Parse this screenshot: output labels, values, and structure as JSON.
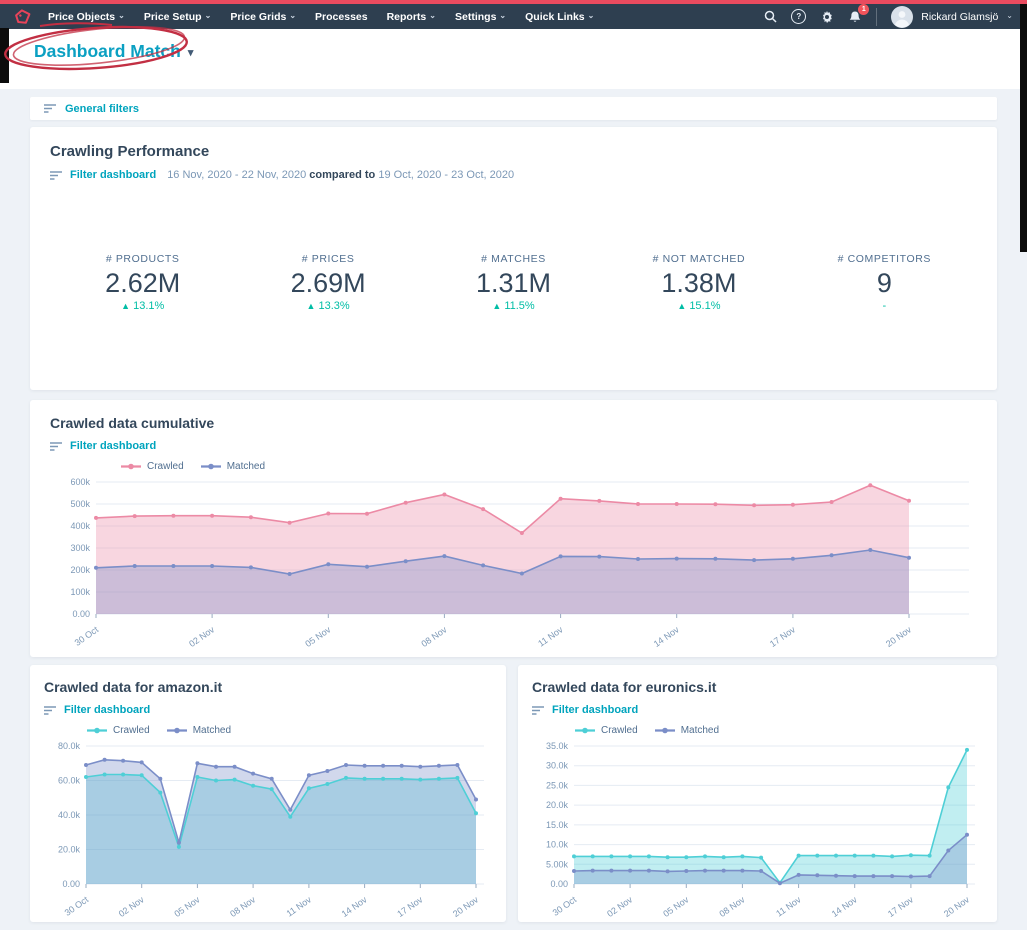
{
  "nav": {
    "items": [
      {
        "label": "Price Objects",
        "caret": true
      },
      {
        "label": "Price Setup",
        "caret": true
      },
      {
        "label": "Price Grids",
        "caret": true
      },
      {
        "label": "Processes",
        "caret": false
      },
      {
        "label": "Reports",
        "caret": true
      },
      {
        "label": "Settings",
        "caret": true
      },
      {
        "label": "Quick Links",
        "caret": true
      }
    ],
    "notification_count": "1",
    "user": "Rickard Glamsjö"
  },
  "page": {
    "title": "Dashboard Match"
  },
  "general_filters": {
    "label": "General filters"
  },
  "colors": {
    "navbar": "#2e3f50",
    "accent_teal": "#00a4bd",
    "positive_green": "#00bda5",
    "alert_red": "#f2545b",
    "crawled_pink": "#ec8aa5",
    "matched_blue": "#7b8ec8",
    "crawled_teal": "#4ecfd6"
  },
  "crawling_performance": {
    "title": "Crawling Performance",
    "filter_label": "Filter dashboard",
    "date_range": "16 Nov, 2020 - 22 Nov, 2020",
    "compared_to": "compared to",
    "compare_range": "19 Oct, 2020 - 23 Oct, 2020",
    "kpis": [
      {
        "label": "# PRODUCTS",
        "value": "2.62M",
        "delta_icon": "▲",
        "delta": "13.1%"
      },
      {
        "label": "# PRICES",
        "value": "2.69M",
        "delta_icon": "▲",
        "delta": "13.3%"
      },
      {
        "label": "# MATCHES",
        "value": "1.31M",
        "delta_icon": "▲",
        "delta": "11.5%"
      },
      {
        "label": "# NOT MATCHED",
        "value": "1.38M",
        "delta_icon": "▲",
        "delta": "15.1%"
      },
      {
        "label": "# COMPETITORS",
        "value": "9",
        "delta_icon": "",
        "delta": "-"
      }
    ]
  },
  "chart_data": [
    {
      "id": "cumulative",
      "type": "area",
      "title": "Crawled data cumulative",
      "filter_label": "Filter dashboard",
      "legend_position": "top-left",
      "grid": true,
      "n_points": 22,
      "x_tick_labels": [
        "30 Oct",
        "02 Nov",
        "05 Nov",
        "08 Nov",
        "11 Nov",
        "14 Nov",
        "17 Nov",
        "20 Nov"
      ],
      "tick_indices": [
        0,
        3,
        6,
        9,
        12,
        15,
        18,
        21
      ],
      "y_max": 600000,
      "data_right_pad": 60,
      "y_ticks": [
        {
          "label": "600k",
          "v": 600000
        },
        {
          "label": "500k",
          "v": 500000
        },
        {
          "label": "400k",
          "v": 400000
        },
        {
          "label": "300k",
          "v": 300000
        },
        {
          "label": "200k",
          "v": 200000
        },
        {
          "label": "100k",
          "v": 100000
        },
        {
          "label": "0.00",
          "v": 0
        }
      ],
      "series": [
        {
          "name": "Crawled",
          "color": "#ec8aa5",
          "values": [
            437000,
            445000,
            447000,
            447000,
            440000,
            415000,
            457000,
            456000,
            506000,
            543000,
            477000,
            368000,
            524000,
            514000,
            500000,
            500000,
            499000,
            494000,
            497000,
            509000,
            585000,
            515000
          ]
        },
        {
          "name": "Matched",
          "color": "#7b8ec8",
          "values": [
            210000,
            218000,
            218000,
            218000,
            212000,
            182000,
            226000,
            215000,
            240000,
            263000,
            221000,
            184000,
            262000,
            261000,
            250000,
            252000,
            251000,
            245000,
            251000,
            267000,
            291000,
            256000
          ]
        }
      ]
    },
    {
      "id": "amazon",
      "type": "area",
      "title": "Crawled data for amazon.it",
      "filter_label": "Filter dashboard",
      "legend_position": "top-left",
      "grid": true,
      "n_points": 22,
      "x_tick_labels": [
        "30 Oct",
        "02 Nov",
        "05 Nov",
        "08 Nov",
        "11 Nov",
        "14 Nov",
        "17 Nov",
        "20 Nov"
      ],
      "tick_indices": [
        0,
        3,
        6,
        9,
        12,
        15,
        18,
        21
      ],
      "y_max": 80000,
      "data_right_pad": 8,
      "y_ticks": [
        {
          "label": "80.0k",
          "v": 80000
        },
        {
          "label": "60.0k",
          "v": 60000
        },
        {
          "label": "40.0k",
          "v": 40000
        },
        {
          "label": "20.0k",
          "v": 20000
        },
        {
          "label": "0.00",
          "v": 0
        }
      ],
      "series": [
        {
          "name": "Crawled",
          "color": "#4ecfd6",
          "values": [
            62000,
            63500,
            63500,
            63000,
            53000,
            21500,
            62000,
            60000,
            60500,
            57000,
            55000,
            39000,
            55500,
            58000,
            61500,
            61000,
            61000,
            61000,
            60500,
            61000,
            61500,
            41000
          ]
        },
        {
          "name": "Matched",
          "color": "#7b8ec8",
          "values": [
            69000,
            72000,
            71500,
            70500,
            61000,
            24000,
            70000,
            68000,
            68000,
            64000,
            61000,
            43000,
            63000,
            65500,
            69000,
            68500,
            68500,
            68500,
            68000,
            68500,
            69000,
            49000
          ]
        }
      ]
    },
    {
      "id": "euronics",
      "type": "area",
      "title": "Crawled data for euronics.it",
      "filter_label": "Filter dashboard",
      "legend_position": "top-left",
      "grid": true,
      "n_points": 22,
      "x_tick_labels": [
        "30 Oct",
        "02 Nov",
        "05 Nov",
        "08 Nov",
        "11 Nov",
        "14 Nov",
        "17 Nov",
        "20 Nov"
      ],
      "tick_indices": [
        0,
        3,
        6,
        9,
        12,
        15,
        18,
        21
      ],
      "y_max": 35000,
      "data_right_pad": 8,
      "y_ticks": [
        {
          "label": "35.0k",
          "v": 35000
        },
        {
          "label": "30.0k",
          "v": 30000
        },
        {
          "label": "25.0k",
          "v": 25000
        },
        {
          "label": "20.0k",
          "v": 20000
        },
        {
          "label": "15.0k",
          "v": 15000
        },
        {
          "label": "10.0k",
          "v": 10000
        },
        {
          "label": "5.00k",
          "v": 5000
        },
        {
          "label": "0.00",
          "v": 0
        }
      ],
      "series": [
        {
          "name": "Crawled",
          "color": "#4ecfd6",
          "values": [
            7000,
            7000,
            7000,
            7000,
            7000,
            6800,
            6800,
            7000,
            6800,
            7000,
            6700,
            300,
            7200,
            7200,
            7200,
            7200,
            7200,
            7000,
            7300,
            7200,
            24500,
            34000
          ]
        },
        {
          "name": "Matched",
          "color": "#7b8ec8",
          "values": [
            3300,
            3400,
            3400,
            3400,
            3400,
            3200,
            3300,
            3400,
            3400,
            3400,
            3300,
            200,
            2300,
            2200,
            2100,
            2000,
            2000,
            2000,
            1900,
            2000,
            8500,
            12500
          ]
        }
      ]
    }
  ]
}
